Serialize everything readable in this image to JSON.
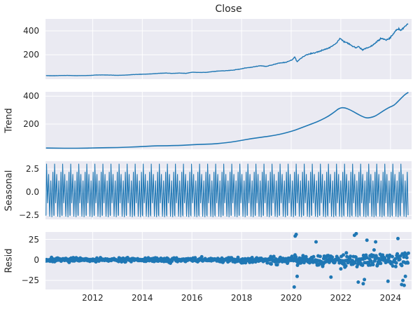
{
  "title": "Close",
  "colors": {
    "line": "#1f77b4",
    "panel_bg": "#eaeaf2",
    "grid": "#ffffff",
    "text": "#262626",
    "fig_bg": "#ffffff"
  },
  "panels": {
    "trend": {
      "ylabel": "Trend"
    },
    "seasonal": {
      "ylabel": "Seasonal"
    },
    "resid": {
      "ylabel": "Resid"
    }
  },
  "x_axis": {
    "lim": [
      2010.1,
      2024.85
    ],
    "tick_values": [
      2012,
      2014,
      2016,
      2018,
      2020,
      2022,
      2024
    ],
    "tick_labels": [
      "2012",
      "2014",
      "2016",
      "2018",
      "2020",
      "2022",
      "2024"
    ]
  },
  "chart_data": [
    {
      "type": "line",
      "name": "Close",
      "role": "observed",
      "title": "Close",
      "ylim": [
        -5,
        500
      ],
      "yticks": {
        "values": [
          400,
          200
        ],
        "labels": [
          "400",
          "200"
        ]
      },
      "x": [
        2010.12,
        2010.4,
        2010.7,
        2011.0,
        2011.3,
        2011.6,
        2011.9,
        2012.15,
        2012.4,
        2012.7,
        2013.0,
        2013.3,
        2013.6,
        2013.9,
        2014.15,
        2014.4,
        2014.7,
        2014.95,
        2015.2,
        2015.5,
        2015.75,
        2016.0,
        2016.25,
        2016.55,
        2016.8,
        2017.05,
        2017.35,
        2017.65,
        2017.95,
        2018.15,
        2018.4,
        2018.6,
        2018.78,
        2018.98,
        2019.2,
        2019.5,
        2019.8,
        2020.05,
        2020.14,
        2020.23,
        2020.45,
        2020.7,
        2020.95,
        2021.2,
        2021.45,
        2021.65,
        2021.85,
        2021.96,
        2022.1,
        2022.3,
        2022.45,
        2022.6,
        2022.72,
        2022.87,
        2023.0,
        2023.15,
        2023.35,
        2023.5,
        2023.65,
        2023.8,
        2023.95,
        2024.1,
        2024.2,
        2024.32,
        2024.42,
        2024.55,
        2024.72
      ],
      "values": [
        25.5,
        24,
        26,
        26.5,
        25,
        25.5,
        26.5,
        30,
        31,
        29.5,
        27.5,
        29,
        33.5,
        36,
        37.5,
        40,
        44.5,
        46.5,
        43.5,
        46.5,
        44,
        53,
        51.5,
        52,
        58,
        63,
        66,
        71,
        80,
        89,
        95,
        102,
        109,
        101,
        113,
        129,
        137,
        159,
        183,
        141,
        179,
        206,
        215,
        234,
        252,
        271,
        305,
        338,
        311,
        296,
        273,
        261,
        269,
        241,
        253,
        263,
        289,
        318,
        340,
        323,
        333,
        373,
        400,
        418,
        406,
        430,
        463
      ],
      "noise": {
        "seed": 42,
        "rel_amp": 0.022,
        "min_amp": 0.6,
        "step_years": 0.0195
      }
    },
    {
      "type": "line",
      "name": "Trend",
      "role": "trend",
      "ylim": [
        18,
        432
      ],
      "yticks": {
        "values": [
          400,
          200
        ],
        "labels": [
          "400",
          "200"
        ]
      },
      "x": [
        2010.12,
        2010.6,
        2011.1,
        2011.6,
        2012.0,
        2012.4,
        2012.8,
        2013.2,
        2013.6,
        2014.0,
        2014.4,
        2014.8,
        2015.2,
        2015.6,
        2016.0,
        2016.4,
        2016.8,
        2017.2,
        2017.6,
        2018.0,
        2018.4,
        2018.8,
        2019.1,
        2019.4,
        2019.7,
        2020.0,
        2020.3,
        2020.6,
        2020.9,
        2021.2,
        2021.5,
        2021.75,
        2021.95,
        2022.15,
        2022.4,
        2022.65,
        2022.9,
        2023.05,
        2023.2,
        2023.4,
        2023.6,
        2023.8,
        2024.0,
        2024.15,
        2024.3,
        2024.45,
        2024.6,
        2024.72
      ],
      "values": [
        27,
        26,
        25.5,
        26,
        27.5,
        29.5,
        30,
        31.5,
        34.5,
        38,
        41.5,
        43.5,
        44.5,
        46.5,
        51,
        53.5,
        56,
        62,
        70,
        82,
        95,
        105,
        112,
        121,
        132,
        147,
        165,
        186,
        206,
        228,
        256,
        288,
        316,
        319,
        300,
        274,
        251,
        243,
        246,
        258,
        282,
        305,
        325,
        335,
        362,
        390,
        415,
        428
      ]
    },
    {
      "type": "line",
      "name": "Seasonal",
      "role": "seasonal",
      "ylim": [
        -2.95,
        3.35
      ],
      "yticks": {
        "values": [
          2.5,
          0.0,
          -2.5
        ],
        "labels": [
          "2.5",
          "0.0",
          "−2.5"
        ]
      },
      "x_start": 2010.12,
      "x_end": 2024.72,
      "cycles": 45,
      "pattern_frac": [
        0,
        0.07,
        0.2,
        0.33,
        0.46,
        0.6,
        0.73,
        0.86,
        0.97
      ],
      "pattern_values": [
        -2.55,
        3.08,
        -1.2,
        1.95,
        -2.65,
        1.25,
        -2.7,
        2.2,
        -2.5
      ],
      "range": [
        -2.75,
        3.1
      ]
    },
    {
      "type": "scatter",
      "name": "Resid",
      "role": "resid",
      "ylim": [
        -36,
        34
      ],
      "yticks": {
        "values": [
          25,
          0,
          -25
        ],
        "labels": [
          "25",
          "0",
          "−25"
        ]
      },
      "x_start": 2010.12,
      "x_end": 2024.72,
      "n_points": 720,
      "seed": 7,
      "marker_radius": 2.5,
      "envelope_x": [
        2010.12,
        2012,
        2014,
        2016,
        2017,
        2018,
        2019,
        2019.8,
        2020.1,
        2020.35,
        2021,
        2021.5,
        2022,
        2022.5,
        2022.9,
        2023.3,
        2023.7,
        2024.1,
        2024.72
      ],
      "envelope_y": [
        3.6,
        3.3,
        3.6,
        4.0,
        4.2,
        5.2,
        6.5,
        7.5,
        14,
        10,
        8.5,
        10,
        12,
        14,
        15,
        12.5,
        13.5,
        12,
        13.5
      ],
      "annual_modulation": 0.3,
      "outliers": [
        [
          2020.12,
          -33
        ],
        [
          2020.16,
          29
        ],
        [
          2020.2,
          31
        ],
        [
          2020.24,
          -20
        ],
        [
          2021.0,
          22
        ],
        [
          2021.6,
          -21
        ],
        [
          2022.55,
          30
        ],
        [
          2022.62,
          32
        ],
        [
          2022.7,
          -27
        ],
        [
          2022.9,
          -29
        ],
        [
          2022.95,
          -24
        ],
        [
          2023.05,
          24
        ],
        [
          2023.4,
          22
        ],
        [
          2023.9,
          -26
        ],
        [
          2024.3,
          26
        ],
        [
          2024.45,
          -30
        ],
        [
          2024.5,
          -25
        ],
        [
          2024.55,
          -31
        ],
        [
          2024.6,
          -20
        ]
      ]
    }
  ]
}
